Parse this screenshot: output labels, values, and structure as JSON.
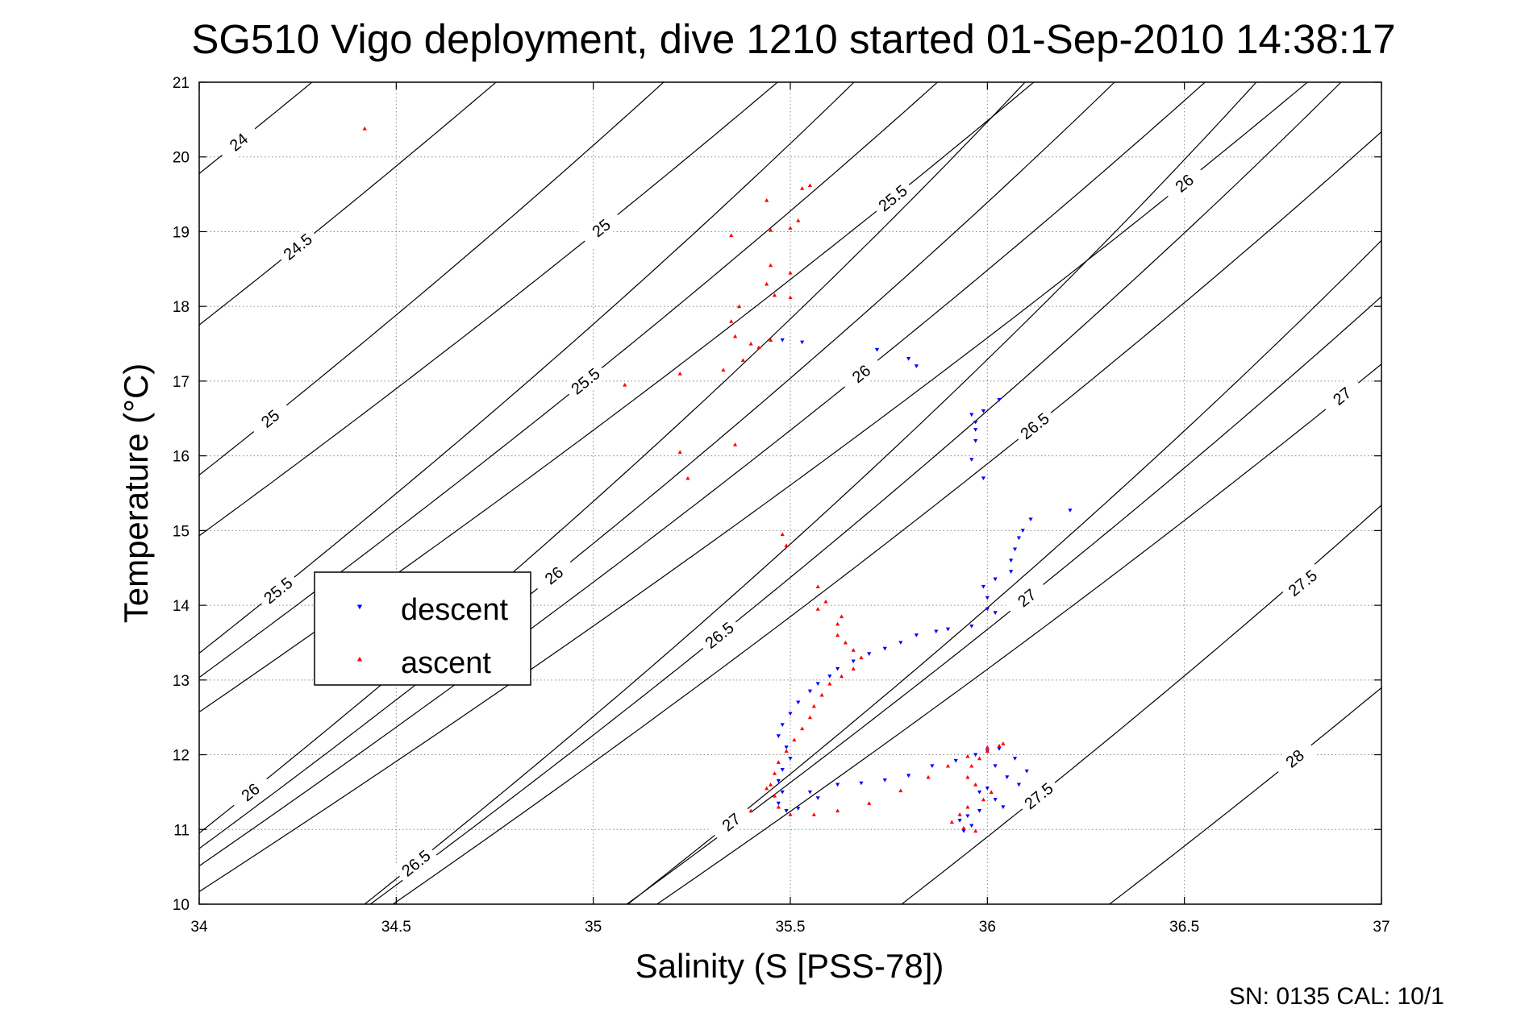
{
  "chart_data": {
    "type": "scatter",
    "title": "SG510 Vigo deployment, dive 1210 started 01-Sep-2010 14:38:17",
    "xlabel": "Salinity (S [PSS-78])",
    "ylabel": "Temperature (°C)",
    "xlim": [
      34,
      37
    ],
    "ylim": [
      10,
      21
    ],
    "x_ticks": [
      "34",
      "34.5",
      "35",
      "35.5",
      "36",
      "36.5",
      "37"
    ],
    "y_ticks": [
      "10",
      "11",
      "12",
      "13",
      "14",
      "15",
      "16",
      "17",
      "18",
      "19",
      "20",
      "21"
    ],
    "grid": true,
    "legend_position": "left",
    "footer": "SN: 0135  CAL: 10/1",
    "density_contours": [
      {
        "level": "24",
        "anchor": [
          34.1,
          20.2
        ]
      },
      {
        "level": "24.5",
        "anchor": [
          34.25,
          18.8
        ]
      },
      {
        "level": "25",
        "anchor": [
          34.18,
          16.5
        ]
      },
      {
        "level": "25",
        "anchor": [
          35.02,
          19.05
        ]
      },
      {
        "level": "25.5",
        "anchor": [
          34.2,
          14.2
        ]
      },
      {
        "level": "25.5",
        "anchor": [
          34.98,
          17.0
        ]
      },
      {
        "level": "25.5",
        "anchor": [
          35.76,
          19.45
        ]
      },
      {
        "level": "26",
        "anchor": [
          34.13,
          11.5
        ]
      },
      {
        "level": "26",
        "anchor": [
          34.9,
          14.4
        ]
      },
      {
        "level": "26",
        "anchor": [
          35.68,
          17.1
        ]
      },
      {
        "level": "26",
        "anchor": [
          36.5,
          19.65
        ]
      },
      {
        "level": "26.5",
        "anchor": [
          34.55,
          10.55
        ]
      },
      {
        "level": "26.5",
        "anchor": [
          35.32,
          13.6
        ]
      },
      {
        "level": "26.5",
        "anchor": [
          36.12,
          16.4
        ]
      },
      {
        "level": "27",
        "anchor": [
          35.35,
          11.1
        ]
      },
      {
        "level": "27",
        "anchor": [
          36.1,
          14.1
        ]
      },
      {
        "level": "27",
        "anchor": [
          36.9,
          16.8
        ]
      },
      {
        "level": "27.5",
        "anchor": [
          36.13,
          11.45
        ]
      },
      {
        "level": "27.5",
        "anchor": [
          36.8,
          14.3
        ]
      },
      {
        "level": "28",
        "anchor": [
          36.78,
          11.95
        ]
      }
    ],
    "series": [
      {
        "name": "descent",
        "color": "#0000ff",
        "marker": "triangle-down",
        "points": [
          [
            35.48,
            17.55
          ],
          [
            35.53,
            17.52
          ],
          [
            35.72,
            17.42
          ],
          [
            35.8,
            17.3
          ],
          [
            35.82,
            17.2
          ],
          [
            36.03,
            16.75
          ],
          [
            35.96,
            16.55
          ],
          [
            35.99,
            16.6
          ],
          [
            35.97,
            16.45
          ],
          [
            35.97,
            16.35
          ],
          [
            35.97,
            16.2
          ],
          [
            35.96,
            15.95
          ],
          [
            35.99,
            15.7
          ],
          [
            36.21,
            15.27
          ],
          [
            36.11,
            15.15
          ],
          [
            36.09,
            15.0
          ],
          [
            36.08,
            14.9
          ],
          [
            36.07,
            14.75
          ],
          [
            36.06,
            14.6
          ],
          [
            36.06,
            14.45
          ],
          [
            36.02,
            14.35
          ],
          [
            35.99,
            14.25
          ],
          [
            36.0,
            14.1
          ],
          [
            36.0,
            13.95
          ],
          [
            36.02,
            13.9
          ],
          [
            35.96,
            13.72
          ],
          [
            35.9,
            13.68
          ],
          [
            35.87,
            13.65
          ],
          [
            35.82,
            13.6
          ],
          [
            35.78,
            13.5
          ],
          [
            35.74,
            13.42
          ],
          [
            35.7,
            13.35
          ],
          [
            35.66,
            13.25
          ],
          [
            35.62,
            13.15
          ],
          [
            35.6,
            13.05
          ],
          [
            35.57,
            12.95
          ],
          [
            35.55,
            12.85
          ],
          [
            35.52,
            12.7
          ],
          [
            35.5,
            12.55
          ],
          [
            35.48,
            12.4
          ],
          [
            35.47,
            12.25
          ],
          [
            35.49,
            12.1
          ],
          [
            35.5,
            11.95
          ],
          [
            35.48,
            11.8
          ],
          [
            35.47,
            11.65
          ],
          [
            35.48,
            11.5
          ],
          [
            35.47,
            11.35
          ],
          [
            35.49,
            11.25
          ],
          [
            35.55,
            11.5
          ],
          [
            35.62,
            11.6
          ],
          [
            35.68,
            11.62
          ],
          [
            35.74,
            11.66
          ],
          [
            35.8,
            11.72
          ],
          [
            35.86,
            11.85
          ],
          [
            35.92,
            11.92
          ],
          [
            35.97,
            12.0
          ],
          [
            36.0,
            12.05
          ],
          [
            36.03,
            12.08
          ],
          [
            36.07,
            11.95
          ],
          [
            36.02,
            11.85
          ],
          [
            36.05,
            11.7
          ],
          [
            36.08,
            11.6
          ],
          [
            36.0,
            11.55
          ],
          [
            35.98,
            11.5
          ],
          [
            36.02,
            11.4
          ],
          [
            36.04,
            11.3
          ],
          [
            35.98,
            11.25
          ],
          [
            35.95,
            11.18
          ],
          [
            35.93,
            11.12
          ],
          [
            35.96,
            11.05
          ],
          [
            35.94,
            10.98
          ],
          [
            36.1,
            11.78
          ],
          [
            35.52,
            11.28
          ],
          [
            35.57,
            11.42
          ]
        ]
      },
      {
        "name": "ascent",
        "color": "#ff0000",
        "marker": "triangle-up",
        "points": [
          [
            34.42,
            20.38
          ],
          [
            35.55,
            19.62
          ],
          [
            35.53,
            19.58
          ],
          [
            35.44,
            19.42
          ],
          [
            35.52,
            19.15
          ],
          [
            35.5,
            19.05
          ],
          [
            35.45,
            19.02
          ],
          [
            35.35,
            18.95
          ],
          [
            35.45,
            18.55
          ],
          [
            35.5,
            18.45
          ],
          [
            35.44,
            18.3
          ],
          [
            35.46,
            18.15
          ],
          [
            35.5,
            18.12
          ],
          [
            35.37,
            18.0
          ],
          [
            35.35,
            17.8
          ],
          [
            35.36,
            17.6
          ],
          [
            35.45,
            17.55
          ],
          [
            35.4,
            17.5
          ],
          [
            35.42,
            17.45
          ],
          [
            35.38,
            17.28
          ],
          [
            35.33,
            17.15
          ],
          [
            35.22,
            17.1
          ],
          [
            35.08,
            16.95
          ],
          [
            35.36,
            16.15
          ],
          [
            35.22,
            16.05
          ],
          [
            35.24,
            15.7
          ],
          [
            35.48,
            14.95
          ],
          [
            35.49,
            14.8
          ],
          [
            35.57,
            14.25
          ],
          [
            35.59,
            14.05
          ],
          [
            35.57,
            13.95
          ],
          [
            35.63,
            13.85
          ],
          [
            35.62,
            13.75
          ],
          [
            35.62,
            13.6
          ],
          [
            35.64,
            13.5
          ],
          [
            35.66,
            13.4
          ],
          [
            35.68,
            13.3
          ],
          [
            35.66,
            13.15
          ],
          [
            35.63,
            13.05
          ],
          [
            35.6,
            12.95
          ],
          [
            35.58,
            12.8
          ],
          [
            35.56,
            12.65
          ],
          [
            35.55,
            12.5
          ],
          [
            35.53,
            12.35
          ],
          [
            35.51,
            12.2
          ],
          [
            35.49,
            12.05
          ],
          [
            35.47,
            11.9
          ],
          [
            35.46,
            11.75
          ],
          [
            35.45,
            11.6
          ],
          [
            35.46,
            11.45
          ],
          [
            35.47,
            11.3
          ],
          [
            35.5,
            11.2
          ],
          [
            35.56,
            11.2
          ],
          [
            35.62,
            11.25
          ],
          [
            35.7,
            11.35
          ],
          [
            35.78,
            11.52
          ],
          [
            35.85,
            11.7
          ],
          [
            35.9,
            11.85
          ],
          [
            35.95,
            11.98
          ],
          [
            36.0,
            12.1
          ],
          [
            36.03,
            12.12
          ],
          [
            36.0,
            12.05
          ],
          [
            35.98,
            11.95
          ],
          [
            35.96,
            11.85
          ],
          [
            35.95,
            11.7
          ],
          [
            35.97,
            11.6
          ],
          [
            36.01,
            11.5
          ],
          [
            35.99,
            11.4
          ],
          [
            35.95,
            11.3
          ],
          [
            35.93,
            11.2
          ],
          [
            35.91,
            11.1
          ],
          [
            35.94,
            11.02
          ],
          [
            35.97,
            10.98
          ],
          [
            36.04,
            12.15
          ],
          [
            35.4,
            11.25
          ],
          [
            35.44,
            11.55
          ]
        ]
      }
    ],
    "legend": [
      {
        "label": "descent",
        "color": "#0000ff",
        "marker": "triangle-down"
      },
      {
        "label": "ascent",
        "color": "#ff0000",
        "marker": "triangle-up"
      }
    ]
  }
}
